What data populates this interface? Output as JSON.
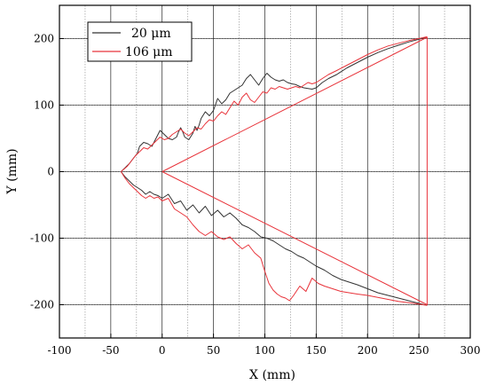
{
  "chart_data": {
    "type": "line",
    "title": "",
    "xlabel": "X (mm)",
    "ylabel": "Y (mm)",
    "xlim": [
      -100,
      300
    ],
    "ylim": [
      -250,
      250
    ],
    "xticks": [
      -100,
      -50,
      0,
      50,
      100,
      150,
      200,
      250,
      300
    ],
    "yticks": [
      -200,
      -100,
      0,
      100,
      200
    ],
    "grid": {
      "major": true,
      "minor": true
    },
    "legend": {
      "position": "top-left",
      "entries": [
        "20 μm",
        "106 μm"
      ]
    },
    "colors": {
      "series_20um": "#333333",
      "series_106um": "#e8333a",
      "grid_major": "#000000",
      "grid_minor": "#9a9a9a"
    },
    "series": [
      {
        "name": "20 μm",
        "x": [
          -40,
          -36,
          -32,
          -28,
          -24,
          -22,
          -18,
          -14,
          -10,
          -6,
          -2,
          2,
          6,
          10,
          14,
          16,
          18,
          20,
          22,
          26,
          30,
          32,
          34,
          36,
          38,
          42,
          46,
          50,
          54,
          58,
          62,
          66,
          70,
          74,
          78,
          82,
          86,
          90,
          94,
          98,
          102,
          106,
          110,
          114,
          118,
          122,
          126,
          130,
          134,
          138,
          142,
          146,
          150,
          156,
          162,
          170,
          180,
          190,
          200,
          210,
          220,
          230,
          240,
          250,
          258
        ],
        "y": [
          0,
          6,
          12,
          20,
          28,
          38,
          44,
          42,
          38,
          50,
          62,
          56,
          50,
          48,
          52,
          60,
          66,
          60,
          52,
          48,
          58,
          68,
          62,
          70,
          80,
          90,
          84,
          92,
          110,
          102,
          108,
          118,
          122,
          126,
          130,
          140,
          146,
          138,
          130,
          140,
          148,
          142,
          138,
          136,
          138,
          134,
          132,
          131,
          128,
          126,
          125,
          124,
          126,
          134,
          140,
          146,
          156,
          164,
          172,
          179,
          185,
          190,
          195,
          199,
          202
        ]
      },
      {
        "name": "106 μm",
        "x": [
          -40,
          -34,
          -30,
          -26,
          -22,
          -18,
          -14,
          -10,
          -6,
          -2,
          2,
          6,
          10,
          14,
          18,
          22,
          26,
          30,
          34,
          38,
          42,
          46,
          50,
          54,
          58,
          62,
          66,
          70,
          74,
          78,
          82,
          86,
          90,
          94,
          98,
          102,
          106,
          110,
          114,
          118,
          122,
          126,
          130,
          134,
          138,
          142,
          146,
          150,
          156,
          162,
          170,
          180,
          190,
          200,
          210,
          220,
          230,
          240,
          250,
          258
        ],
        "y": [
          0,
          8,
          16,
          24,
          30,
          36,
          34,
          40,
          46,
          52,
          48,
          50,
          56,
          60,
          64,
          58,
          54,
          60,
          66,
          64,
          72,
          78,
          76,
          84,
          90,
          86,
          96,
          106,
          100,
          112,
          118,
          108,
          104,
          112,
          120,
          118,
          126,
          124,
          128,
          126,
          124,
          126,
          128,
          126,
          130,
          134,
          132,
          134,
          140,
          146,
          152,
          160,
          168,
          176,
          183,
          189,
          193,
          197,
          200,
          203
        ]
      },
      {
        "name": "",
        "x": [
          0,
          258,
          258,
          0
        ],
        "y": [
          0,
          202,
          -200,
          0
        ]
      },
      {
        "name": "",
        "x": [
          -40,
          -36,
          -32,
          -28,
          -24,
          -20,
          -16,
          -12,
          -8,
          -4,
          0,
          6,
          12,
          18,
          24,
          30,
          36,
          42,
          48,
          54,
          60,
          66,
          72,
          78,
          84,
          90,
          96,
          102,
          108,
          114,
          120,
          126,
          132,
          138,
          144,
          150,
          158,
          166,
          174,
          182,
          190,
          200,
          210,
          220,
          230,
          240,
          250,
          258
        ],
        "y": [
          0,
          -8,
          -14,
          -20,
          -24,
          -28,
          -34,
          -30,
          -34,
          -36,
          -40,
          -34,
          -48,
          -44,
          -58,
          -50,
          -62,
          -52,
          -66,
          -58,
          -68,
          -62,
          -70,
          -80,
          -84,
          -90,
          -98,
          -100,
          -104,
          -110,
          -116,
          -120,
          -126,
          -130,
          -136,
          -142,
          -148,
          -156,
          -162,
          -166,
          -170,
          -176,
          -182,
          -186,
          -190,
          -194,
          -198,
          -201
        ]
      },
      {
        "name": "",
        "x": [
          -40,
          -36,
          -32,
          -28,
          -24,
          -20,
          -16,
          -12,
          -8,
          -4,
          0,
          6,
          12,
          18,
          24,
          30,
          36,
          42,
          48,
          54,
          60,
          66,
          72,
          78,
          84,
          90,
          96,
          100,
          104,
          108,
          112,
          116,
          120,
          124,
          128,
          134,
          140,
          146,
          152,
          158,
          166,
          174,
          182,
          190,
          200,
          210,
          220,
          230,
          240,
          250,
          258
        ],
        "y": [
          0,
          -10,
          -18,
          -24,
          -30,
          -36,
          -40,
          -36,
          -40,
          -38,
          -44,
          -40,
          -56,
          -62,
          -68,
          -80,
          -90,
          -96,
          -90,
          -98,
          -102,
          -98,
          -108,
          -116,
          -110,
          -122,
          -130,
          -150,
          -168,
          -178,
          -184,
          -188,
          -190,
          -194,
          -186,
          -172,
          -180,
          -160,
          -168,
          -172,
          -176,
          -180,
          -182,
          -184,
          -186,
          -189,
          -192,
          -195,
          -197,
          -199,
          -201
        ]
      }
    ]
  }
}
